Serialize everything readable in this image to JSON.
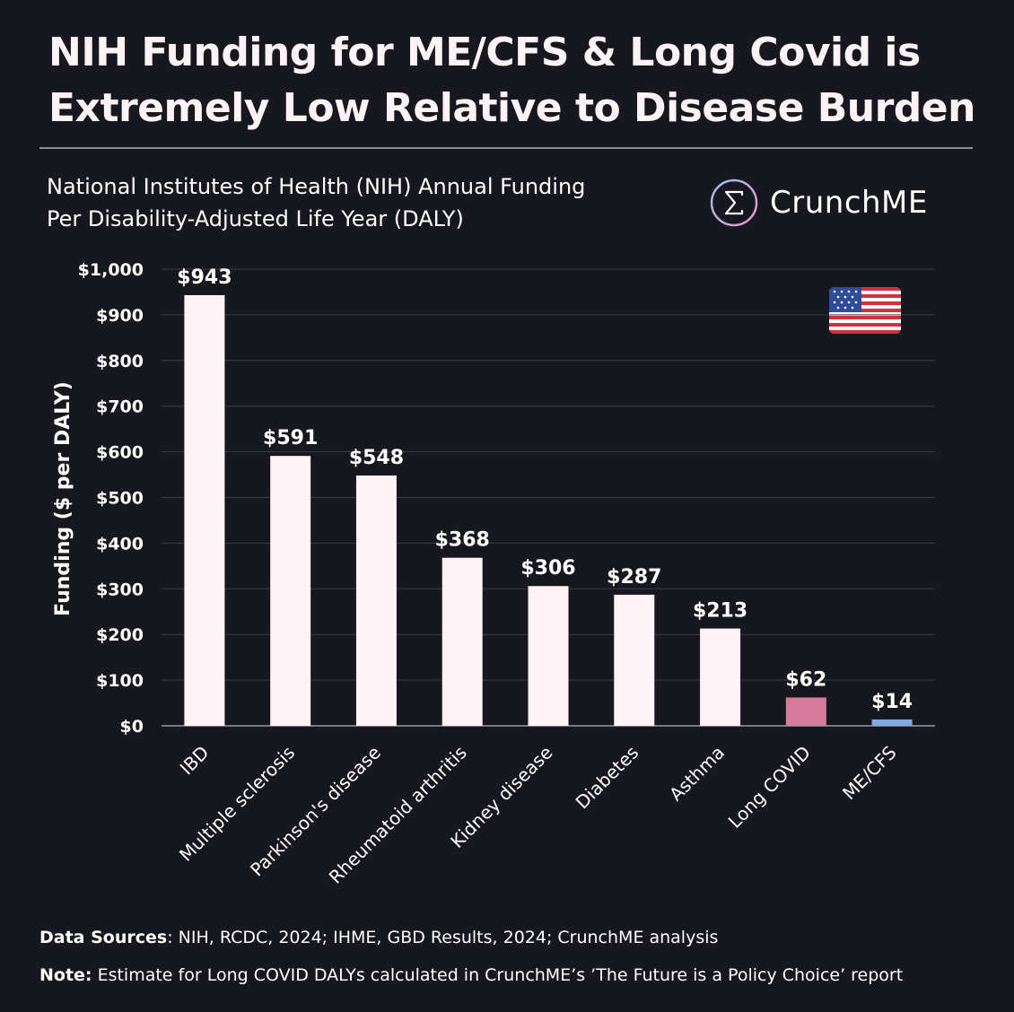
{
  "headline": {
    "line1": "NIH Funding for ME/CFS & Long Covid is",
    "line2": "Extremely Low Relative to Disease Burden"
  },
  "subtitle": {
    "line1": "National Institutes of Health (NIH) Annual Funding",
    "line2": "Per Disability-Adjusted Life Year (DALY)"
  },
  "brand": {
    "name": "CrunchME",
    "logo_icon": "sigma-circle-icon",
    "flag_icon": "us-flag-icon"
  },
  "footer": {
    "sources_label": "Data Sources",
    "sources_text": ": NIH, RCDC, 2024; IHME, GBD Results, 2024; CrunchME analysis",
    "note_label": "Note:",
    "note_text": " Estimate for Long COVID DALYs calculated in CrunchME’s ’The Future is a Policy Choice’ report"
  },
  "colors": {
    "background": "#16171f",
    "default_bar": "#fdf2f5",
    "long_covid_bar": "#d77a9b",
    "mecfs_bar": "#7fa9e6",
    "gridline": "#3a3b45"
  },
  "chart_data": {
    "type": "bar",
    "categories": [
      "IBD",
      "Multiple sclerosis",
      "Parkinson's disease",
      "Rheumatoid arthritis",
      "Kidney disease",
      "Diabetes",
      "Asthma",
      "Long COVID",
      "ME/CFS"
    ],
    "values": [
      943,
      591,
      548,
      368,
      306,
      287,
      213,
      62,
      14
    ],
    "data_labels": [
      "$943",
      "$591",
      "$548",
      "$368",
      "$306",
      "$287",
      "$213",
      "$62",
      "$14"
    ],
    "bar_colors": [
      "#fdf2f5",
      "#fdf2f5",
      "#fdf2f5",
      "#fdf2f5",
      "#fdf2f5",
      "#fdf2f5",
      "#fdf2f5",
      "#d77a9b",
      "#7fa9e6"
    ],
    "ylabel": "Funding ($ per DALY)",
    "ylim": [
      0,
      1000
    ],
    "yticks": [
      0,
      100,
      200,
      300,
      400,
      500,
      600,
      700,
      800,
      900,
      1000
    ],
    "ytick_labels": [
      "$0",
      "$100",
      "$200",
      "$300",
      "$400",
      "$500",
      "$600",
      "$700",
      "$800",
      "$900",
      "$1,000"
    ],
    "grid": true
  }
}
